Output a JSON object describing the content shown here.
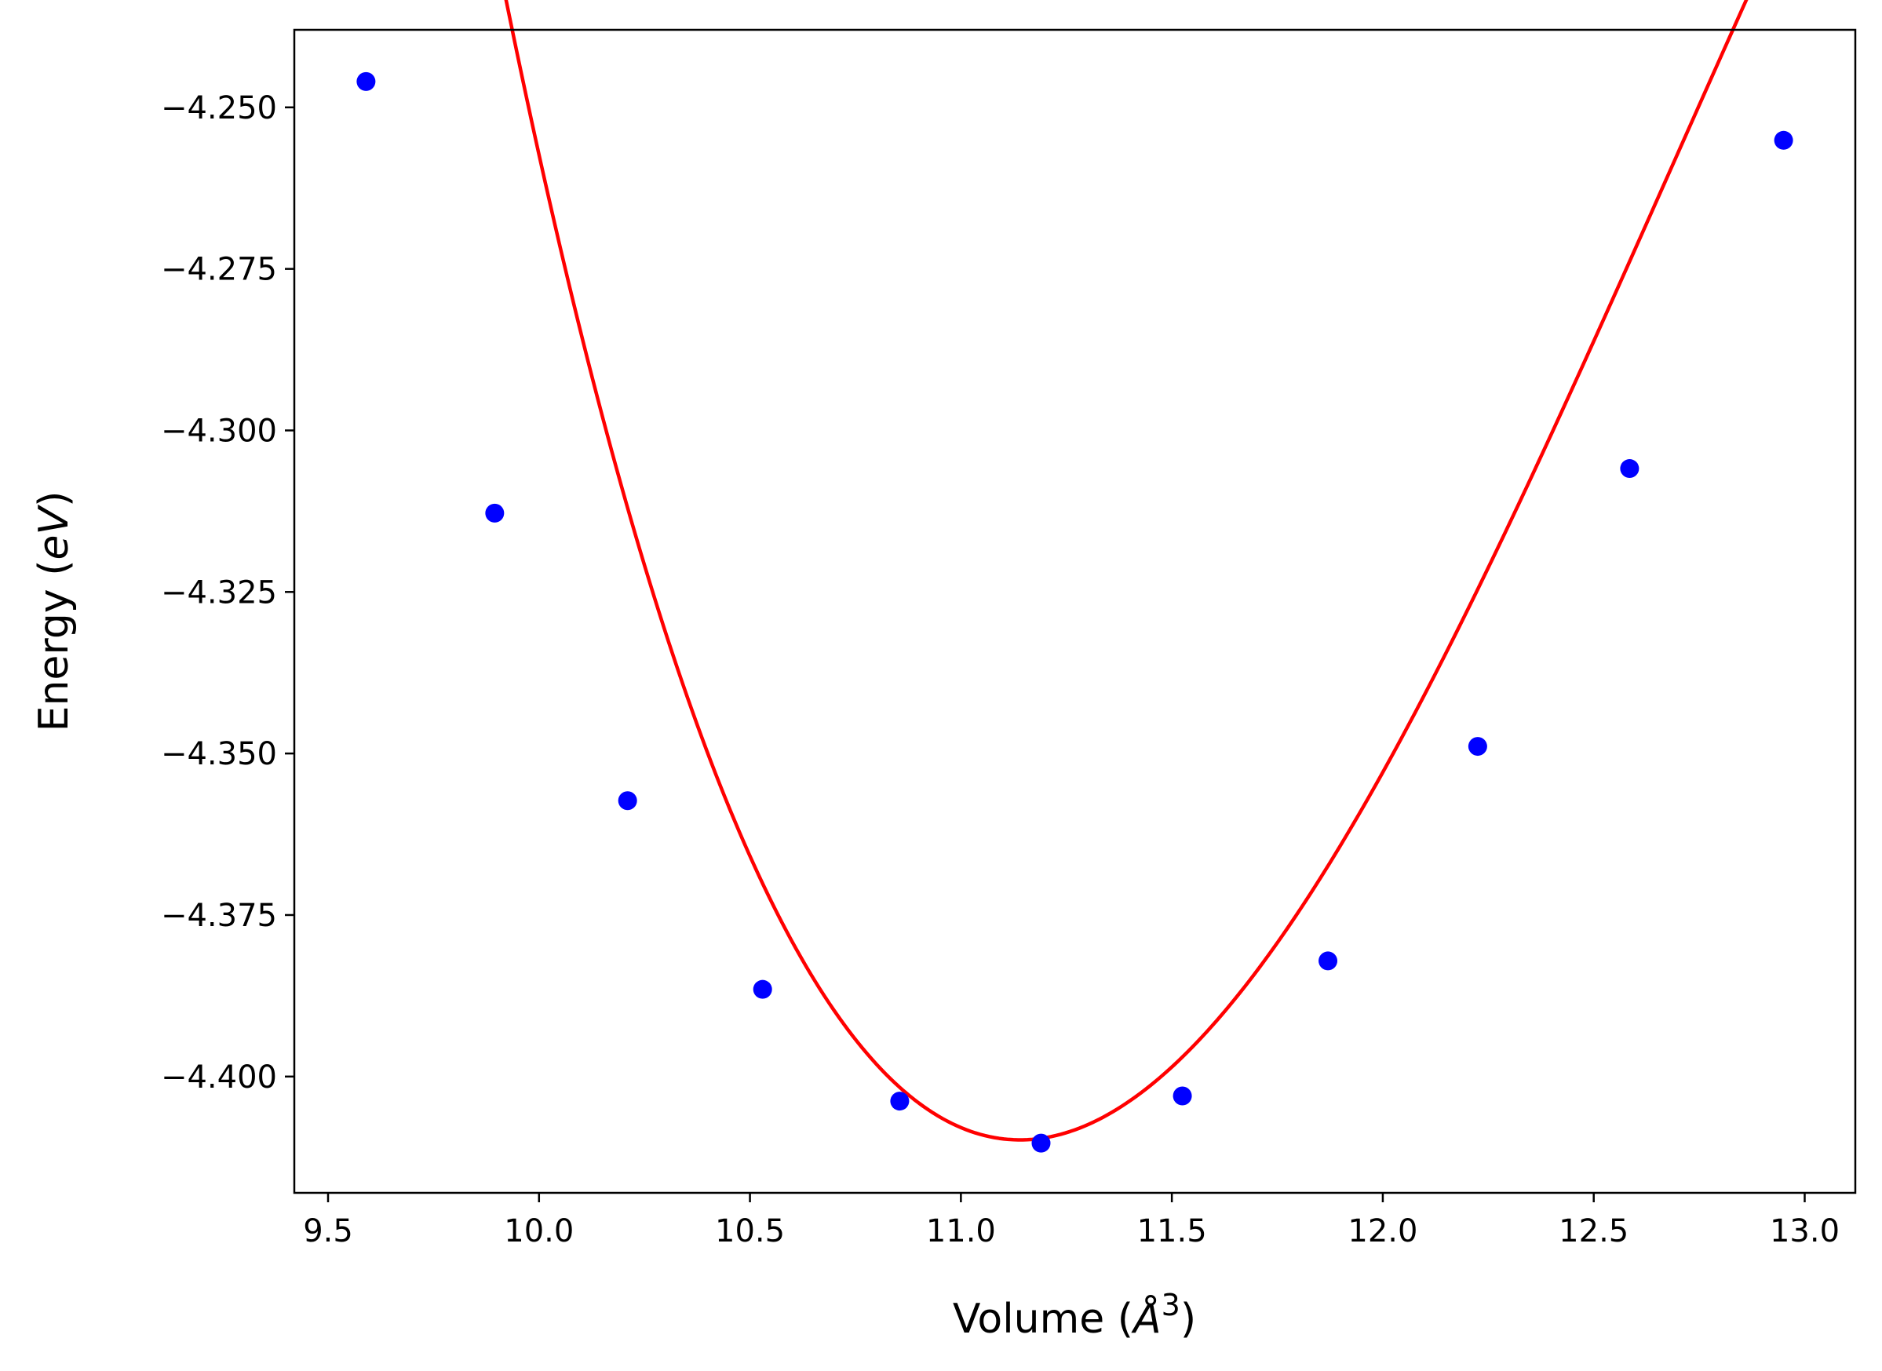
{
  "chart_data": {
    "type": "scatter",
    "xlabel_prefix": "Volume (",
    "xlabel_unit": "Å",
    "xlabel_exp": "3",
    "xlabel_suffix": ")",
    "ylabel_prefix": "Energy (",
    "ylabel_unit": "eV",
    "ylabel_suffix": ")",
    "xlim": [
      9.42,
      13.12
    ],
    "ylim": [
      -4.418,
      -4.238
    ],
    "x_ticks": [
      9.5,
      10.0,
      10.5,
      11.0,
      11.5,
      12.0,
      12.5,
      13.0
    ],
    "x_tick_labels": [
      "9.5",
      "10.0",
      "10.5",
      "11.0",
      "11.5",
      "12.0",
      "12.5",
      "13.0"
    ],
    "y_ticks": [
      -4.25,
      -4.275,
      -4.3,
      -4.325,
      -4.35,
      -4.375,
      -4.4
    ],
    "y_tick_labels": [
      "−4.250",
      "−4.275",
      "−4.300",
      "−4.325",
      "−4.350",
      "−4.375",
      "−4.400"
    ],
    "grid": false,
    "series": [
      {
        "kind": "points",
        "color": "#0000ff",
        "x": [
          9.59,
          9.895,
          10.21,
          10.53,
          10.855,
          11.19,
          11.525,
          11.87,
          12.225,
          12.585,
          12.95
        ],
        "y": [
          -4.246,
          -4.3128,
          -4.3573,
          -4.3865,
          -4.4038,
          -4.4103,
          -4.403,
          -4.3821,
          -4.3489,
          -4.3059,
          -4.2551
        ]
      },
      {
        "kind": "line",
        "color": "#ff0000",
        "fit": {
          "min_x": 11.14,
          "min_y": -4.4098,
          "c2": 0.0943,
          "c3": -0.0202,
          "x_range": [
            9.59,
            12.95
          ]
        }
      }
    ]
  }
}
